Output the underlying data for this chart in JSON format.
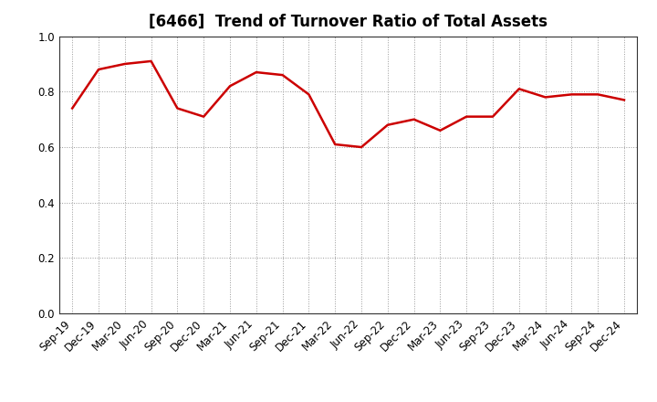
{
  "title": "[6466]  Trend of Turnover Ratio of Total Assets",
  "x_labels": [
    "Sep-19",
    "Dec-19",
    "Mar-20",
    "Jun-20",
    "Sep-20",
    "Dec-20",
    "Mar-21",
    "Jun-21",
    "Sep-21",
    "Dec-21",
    "Mar-22",
    "Jun-22",
    "Sep-22",
    "Dec-22",
    "Mar-23",
    "Jun-23",
    "Sep-23",
    "Dec-23",
    "Mar-24",
    "Jun-24",
    "Sep-24",
    "Dec-24"
  ],
  "y_values": [
    0.74,
    0.88,
    0.9,
    0.91,
    0.74,
    0.71,
    0.82,
    0.87,
    0.86,
    0.79,
    0.61,
    0.6,
    0.68,
    0.7,
    0.66,
    0.71,
    0.71,
    0.81,
    0.78,
    0.79,
    0.79,
    0.77
  ],
  "line_color": "#cc0000",
  "line_width": 1.8,
  "ylim": [
    0.0,
    1.0
  ],
  "yticks": [
    0.0,
    0.2,
    0.4,
    0.6,
    0.8,
    1.0
  ],
  "grid_color": "#999999",
  "background_color": "#ffffff",
  "title_fontsize": 12,
  "tick_fontsize": 8.5
}
